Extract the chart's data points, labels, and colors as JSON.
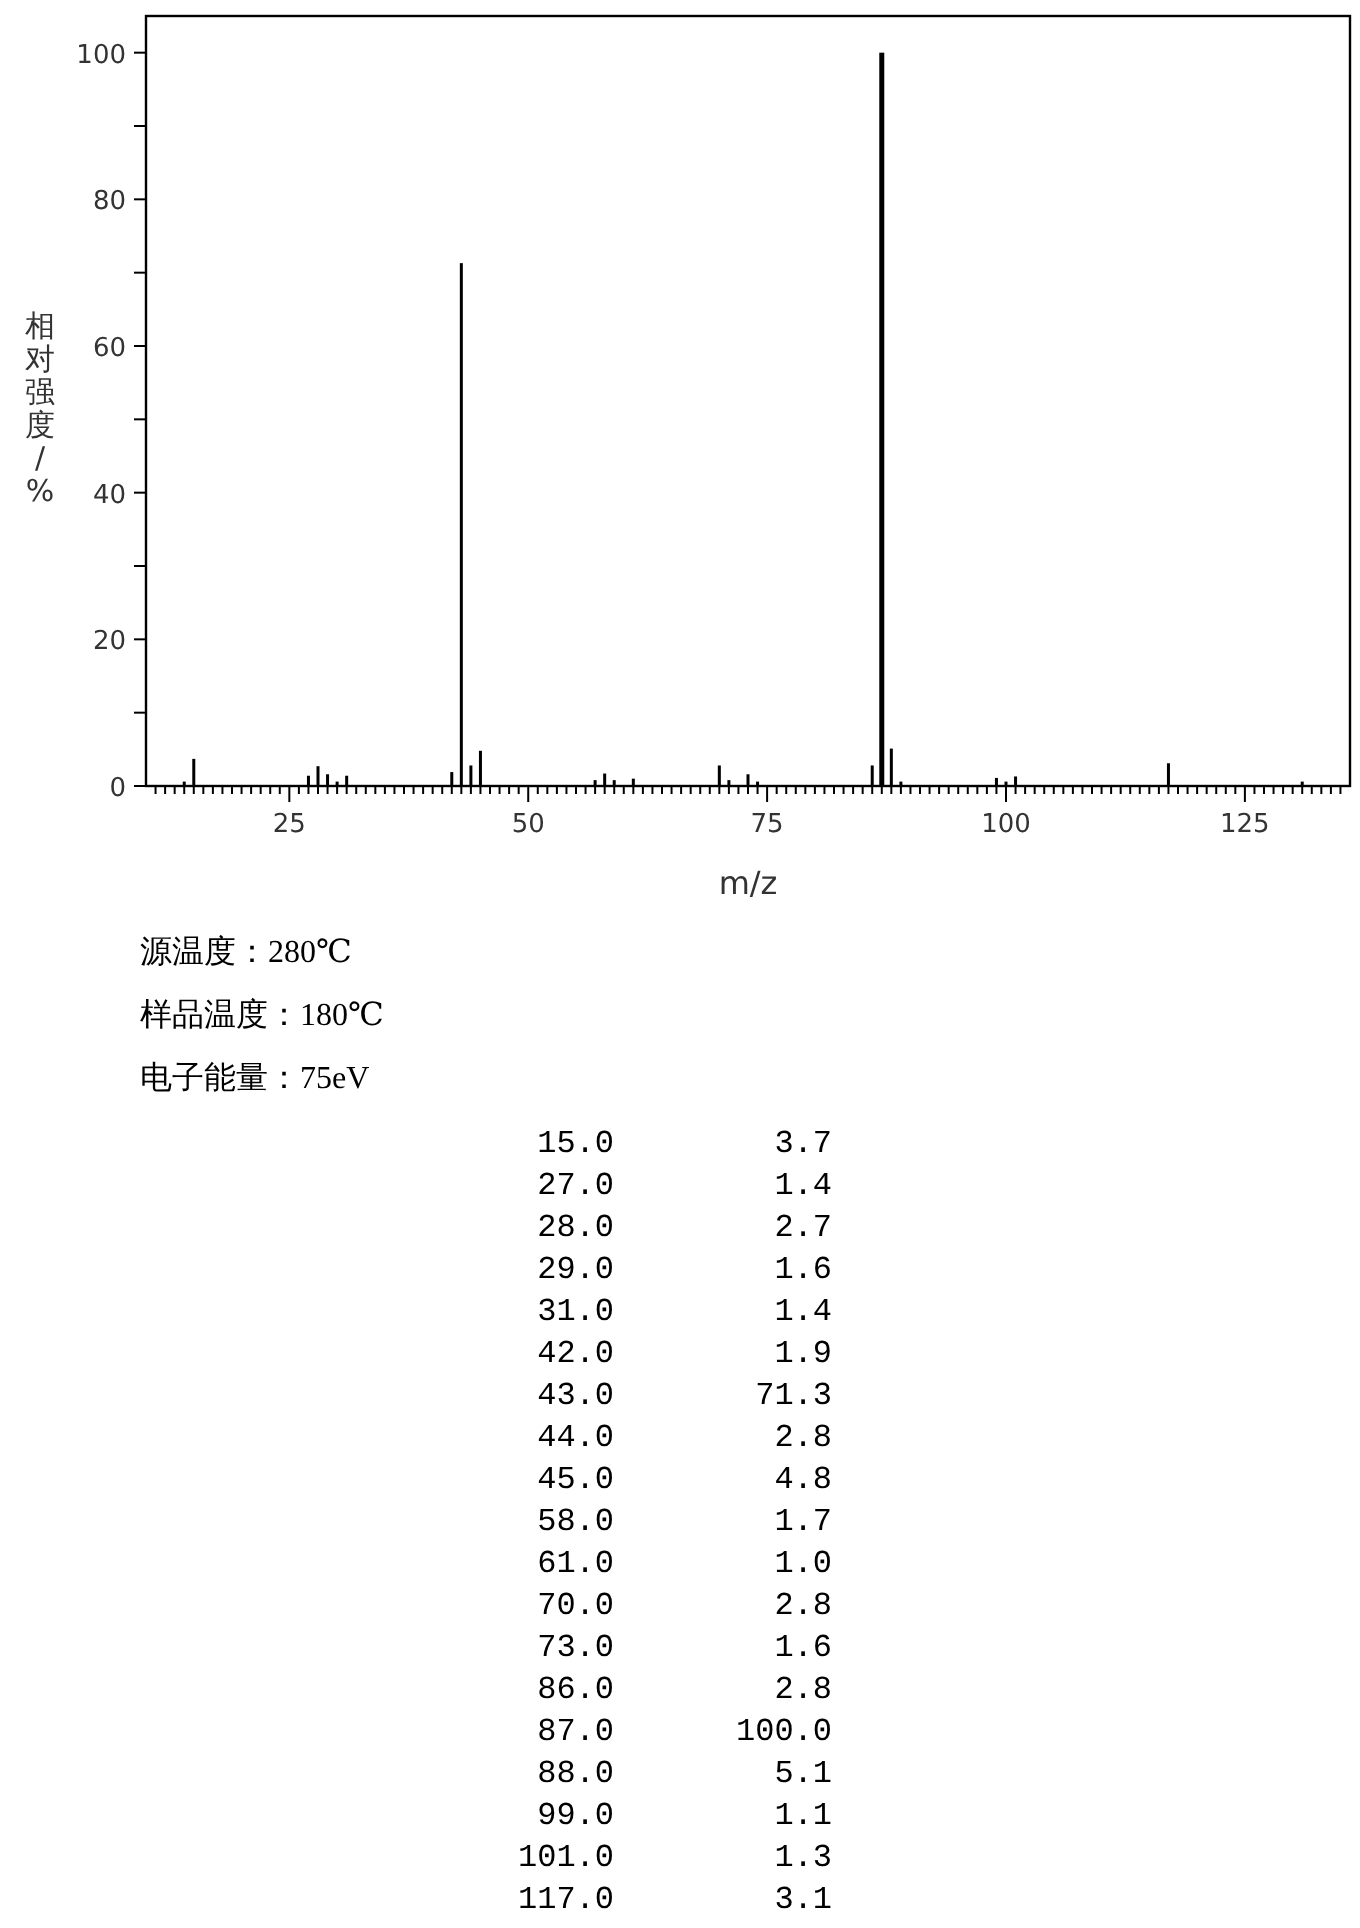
{
  "chart_data": {
    "type": "bar",
    "xlabel": "m/z",
    "ylabel": "相对强度/%",
    "x": [
      14,
      15,
      27,
      28,
      29,
      30,
      31,
      42,
      43,
      44,
      45,
      57,
      58,
      59,
      61,
      70,
      71,
      73,
      74,
      86,
      87,
      88,
      89,
      99,
      100,
      101,
      117,
      131
    ],
    "series": [
      {
        "color": "#000000",
        "values": [
          0.6,
          3.7,
          1.4,
          2.7,
          1.6,
          0.6,
          1.4,
          1.9,
          71.3,
          2.8,
          4.8,
          0.8,
          1.7,
          0.8,
          1.0,
          2.8,
          0.8,
          1.6,
          0.6,
          2.8,
          100.0,
          5.1,
          0.6,
          1.1,
          0.6,
          1.3,
          3.1,
          0.6
        ]
      }
    ],
    "xlim": [
      10,
      136
    ],
    "ylim": [
      0,
      105
    ],
    "xticks": [
      {
        "value": 11,
        "label": null
      },
      {
        "value": 12,
        "label": null
      },
      {
        "value": 13,
        "label": null
      },
      {
        "value": 14,
        "label": null
      },
      {
        "value": 15,
        "label": null
      },
      {
        "value": 16,
        "label": null
      },
      {
        "value": 17,
        "label": null
      },
      {
        "value": 18,
        "label": null
      },
      {
        "value": 19,
        "label": null
      },
      {
        "value": 20,
        "label": null
      },
      {
        "value": 21,
        "label": null
      },
      {
        "value": 22,
        "label": null
      },
      {
        "value": 23,
        "label": null
      },
      {
        "value": 24,
        "label": null
      },
      25,
      {
        "value": 26,
        "label": null
      },
      {
        "value": 27,
        "label": null
      },
      {
        "value": 28,
        "label": null
      },
      {
        "value": 29,
        "label": null
      },
      {
        "value": 30,
        "label": null
      },
      {
        "value": 31,
        "label": null
      },
      {
        "value": 32,
        "label": null
      },
      {
        "value": 33,
        "label": null
      },
      {
        "value": 34,
        "label": null
      },
      {
        "value": 35,
        "label": null
      },
      {
        "value": 36,
        "label": null
      },
      {
        "value": 37,
        "label": null
      },
      {
        "value": 38,
        "label": null
      },
      {
        "value": 39,
        "label": null
      },
      {
        "value": 40,
        "label": null
      },
      {
        "value": 41,
        "label": null
      },
      {
        "value": 42,
        "label": null
      },
      {
        "value": 43,
        "label": null
      },
      {
        "value": 44,
        "label": null
      },
      {
        "value": 45,
        "label": null
      },
      {
        "value": 46,
        "label": null
      },
      {
        "value": 47,
        "label": null
      },
      {
        "value": 48,
        "label": null
      },
      {
        "value": 49,
        "label": null
      },
      50,
      {
        "value": 51,
        "label": null
      },
      {
        "value": 52,
        "label": null
      },
      {
        "value": 53,
        "label": null
      },
      {
        "value": 54,
        "label": null
      },
      {
        "value": 55,
        "label": null
      },
      {
        "value": 56,
        "label": null
      },
      {
        "value": 57,
        "label": null
      },
      {
        "value": 58,
        "label": null
      },
      {
        "value": 59,
        "label": null
      },
      {
        "value": 60,
        "label": null
      },
      {
        "value": 61,
        "label": null
      },
      {
        "value": 62,
        "label": null
      },
      {
        "value": 63,
        "label": null
      },
      {
        "value": 64,
        "label": null
      },
      {
        "value": 65,
        "label": null
      },
      {
        "value": 66,
        "label": null
      },
      {
        "value": 67,
        "label": null
      },
      {
        "value": 68,
        "label": null
      },
      {
        "value": 69,
        "label": null
      },
      {
        "value": 70,
        "label": null
      },
      {
        "value": 71,
        "label": null
      },
      {
        "value": 72,
        "label": null
      },
      {
        "value": 73,
        "label": null
      },
      {
        "value": 74,
        "label": null
      },
      75,
      {
        "value": 76,
        "label": null
      },
      {
        "value": 77,
        "label": null
      },
      {
        "value": 78,
        "label": null
      },
      {
        "value": 79,
        "label": null
      },
      {
        "value": 80,
        "label": null
      },
      {
        "value": 81,
        "label": null
      },
      {
        "value": 82,
        "label": null
      },
      {
        "value": 83,
        "label": null
      },
      {
        "value": 84,
        "label": null
      },
      {
        "value": 85,
        "label": null
      },
      {
        "value": 86,
        "label": null
      },
      {
        "value": 87,
        "label": null
      },
      {
        "value": 88,
        "label": null
      },
      {
        "value": 89,
        "label": null
      },
      {
        "value": 90,
        "label": null
      },
      {
        "value": 91,
        "label": null
      },
      {
        "value": 92,
        "label": null
      },
      {
        "value": 93,
        "label": null
      },
      {
        "value": 94,
        "label": null
      },
      {
        "value": 95,
        "label": null
      },
      {
        "value": 96,
        "label": null
      },
      {
        "value": 97,
        "label": null
      },
      {
        "value": 98,
        "label": null
      },
      {
        "value": 99,
        "label": null
      },
      100,
      {
        "value": 101,
        "label": null
      },
      {
        "value": 102,
        "label": null
      },
      {
        "value": 103,
        "label": null
      },
      {
        "value": 104,
        "label": null
      },
      {
        "value": 105,
        "label": null
      },
      {
        "value": 106,
        "label": null
      },
      {
        "value": 107,
        "label": null
      },
      {
        "value": 108,
        "label": null
      },
      {
        "value": 109,
        "label": null
      },
      {
        "value": 110,
        "label": null
      },
      {
        "value": 111,
        "label": null
      },
      {
        "value": 112,
        "label": null
      },
      {
        "value": 113,
        "label": null
      },
      {
        "value": 114,
        "label": null
      },
      {
        "value": 115,
        "label": null
      },
      {
        "value": 116,
        "label": null
      },
      {
        "value": 117,
        "label": null
      },
      {
        "value": 118,
        "label": null
      },
      {
        "value": 119,
        "label": null
      },
      {
        "value": 120,
        "label": null
      },
      {
        "value": 121,
        "label": null
      },
      {
        "value": 122,
        "label": null
      },
      {
        "value": 123,
        "label": null
      },
      {
        "value": 124,
        "label": null
      },
      125,
      {
        "value": 126,
        "label": null
      },
      {
        "value": 127,
        "label": null
      },
      {
        "value": 128,
        "label": null
      },
      {
        "value": 129,
        "label": null
      },
      {
        "value": 130,
        "label": null
      },
      {
        "value": 131,
        "label": null
      },
      {
        "value": 132,
        "label": null
      },
      {
        "value": 133,
        "label": null
      },
      {
        "value": 134,
        "label": null
      },
      {
        "value": 135,
        "label": null
      }
    ],
    "yticks": [
      0,
      {
        "value": 10,
        "label": null
      },
      20,
      {
        "value": 30,
        "label": null
      },
      40,
      {
        "value": 50,
        "label": null
      },
      60,
      {
        "value": 70,
        "label": null
      },
      80,
      {
        "value": 90,
        "label": null
      },
      100
    ],
    "annotations": [
      "源温度：280℃",
      "样品温度：180℃",
      "电子能量：75eV",
      "15.0",
      "3.7",
      "27.0",
      "1.4",
      "28.0",
      "2.7",
      "29.0",
      "1.6",
      "31.0",
      "1.4",
      "42.0",
      "1.9",
      "43.0",
      "71.3",
      "44.0",
      "2.8",
      "45.0",
      "4.8",
      "58.0",
      "1.7",
      "61.0",
      "1.0",
      "70.0",
      "2.8",
      "73.0",
      "1.6",
      "86.0",
      "2.8",
      "87.0",
      "100.0",
      "88.0",
      "5.1",
      "99.0",
      "1.1",
      "101.0",
      "1.3",
      "117.0",
      "3.1"
    ]
  }
}
